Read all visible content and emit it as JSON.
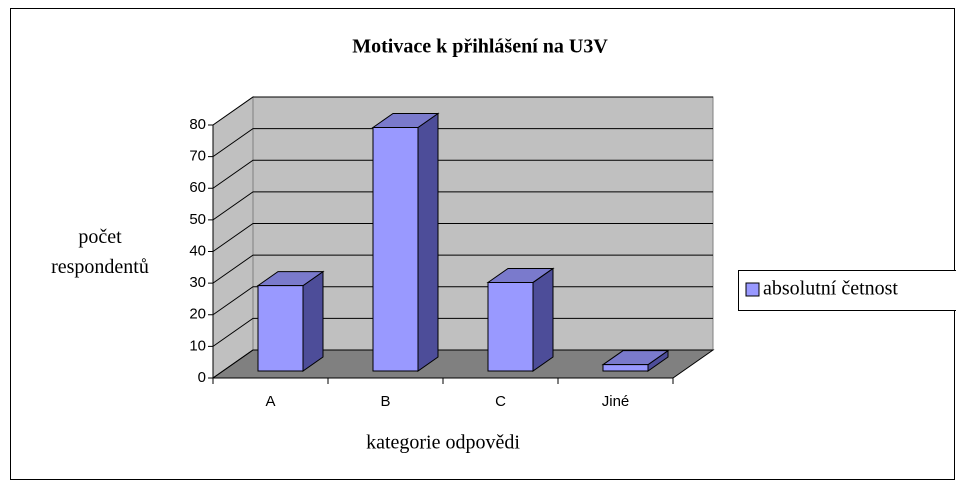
{
  "chart_data": {
    "type": "bar3d",
    "title": "Motivace k přihlášení na U3V",
    "x_label": "kategorie odpovědi",
    "y_label": "počet respondentů",
    "categories": [
      "A",
      "B",
      "C",
      "Jiné"
    ],
    "series": [
      {
        "name": "absolutní četnost",
        "color": "#9999ff",
        "values": [
          27,
          77,
          28,
          2
        ]
      }
    ],
    "ylim": [
      0,
      80
    ],
    "yticks": [
      0,
      10,
      20,
      30,
      40,
      50,
      60,
      70,
      80
    ],
    "grid": true,
    "legend": "right"
  }
}
